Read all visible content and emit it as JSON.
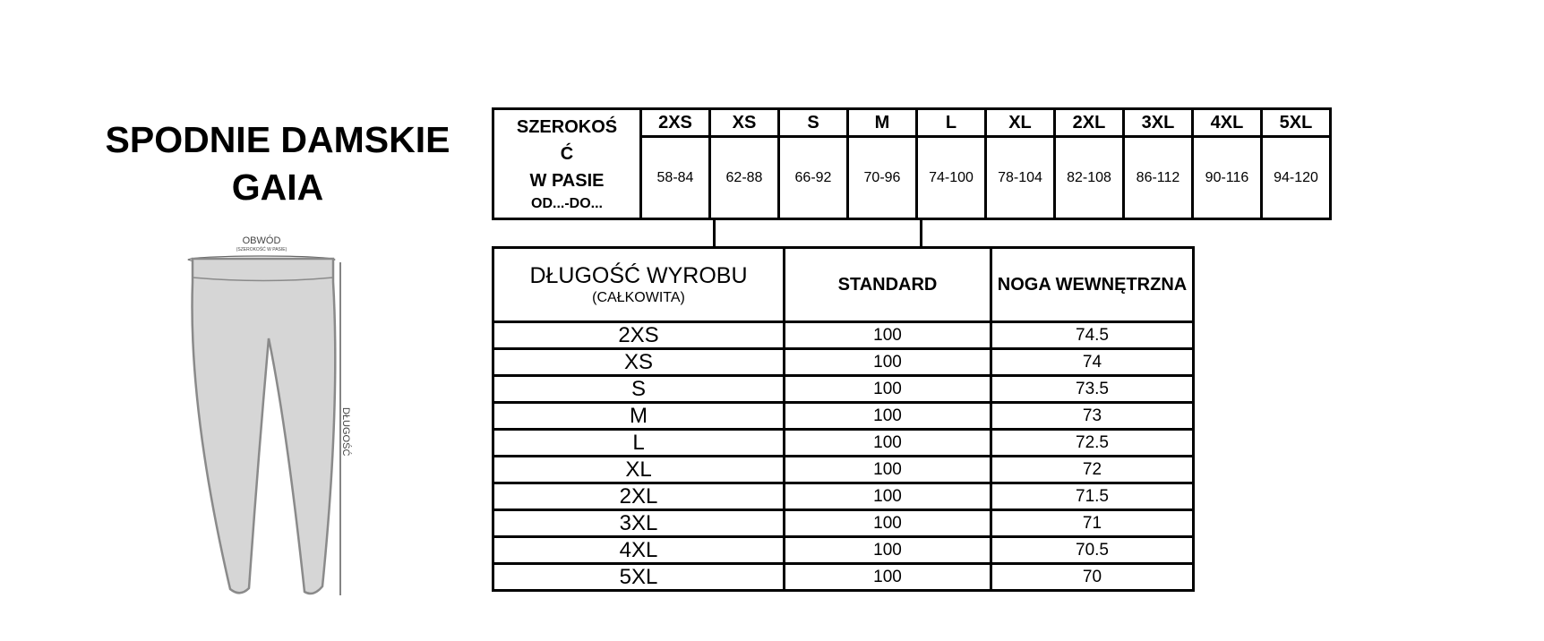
{
  "title": {
    "line1": "SPODNIE DAMSKIE",
    "line2": "GAIA"
  },
  "diagram": {
    "waist_label": "OBWÓD",
    "waist_sublabel": "(SZEROKOŚĆ W PASIE)",
    "length_label": "DŁUGOŚĆ"
  },
  "waist_table": {
    "label_line1": "SZEROKOŚ",
    "label_line2": "Ć",
    "label_line3": "W PASIE",
    "label_line4": "OD...-DO...",
    "sizes": [
      "2XS",
      "XS",
      "S",
      "M",
      "L",
      "XL",
      "2XL",
      "3XL",
      "4XL",
      "5XL"
    ],
    "ranges": [
      "58-84",
      "62-88",
      "66-92",
      "70-96",
      "74-100",
      "78-104",
      "82-108",
      "86-112",
      "90-116",
      "94-120"
    ]
  },
  "length_table": {
    "header_label": "DŁUGOŚĆ WYROBU",
    "header_sublabel": "(CAŁKOWITA)",
    "col_standard": "STANDARD",
    "col_inseam": "NOGA WEWNĘTRZNA",
    "rows": [
      {
        "size": "2XS",
        "standard": "100",
        "inseam": "74.5"
      },
      {
        "size": "XS",
        "standard": "100",
        "inseam": "74"
      },
      {
        "size": "S",
        "standard": "100",
        "inseam": "73.5"
      },
      {
        "size": "M",
        "standard": "100",
        "inseam": "73"
      },
      {
        "size": "L",
        "standard": "100",
        "inseam": "72.5"
      },
      {
        "size": "XL",
        "standard": "100",
        "inseam": "72"
      },
      {
        "size": "2XL",
        "standard": "100",
        "inseam": "71.5"
      },
      {
        "size": "3XL",
        "standard": "100",
        "inseam": "71"
      },
      {
        "size": "4XL",
        "standard": "100",
        "inseam": "70.5"
      },
      {
        "size": "5XL",
        "standard": "100",
        "inseam": "70"
      }
    ]
  }
}
